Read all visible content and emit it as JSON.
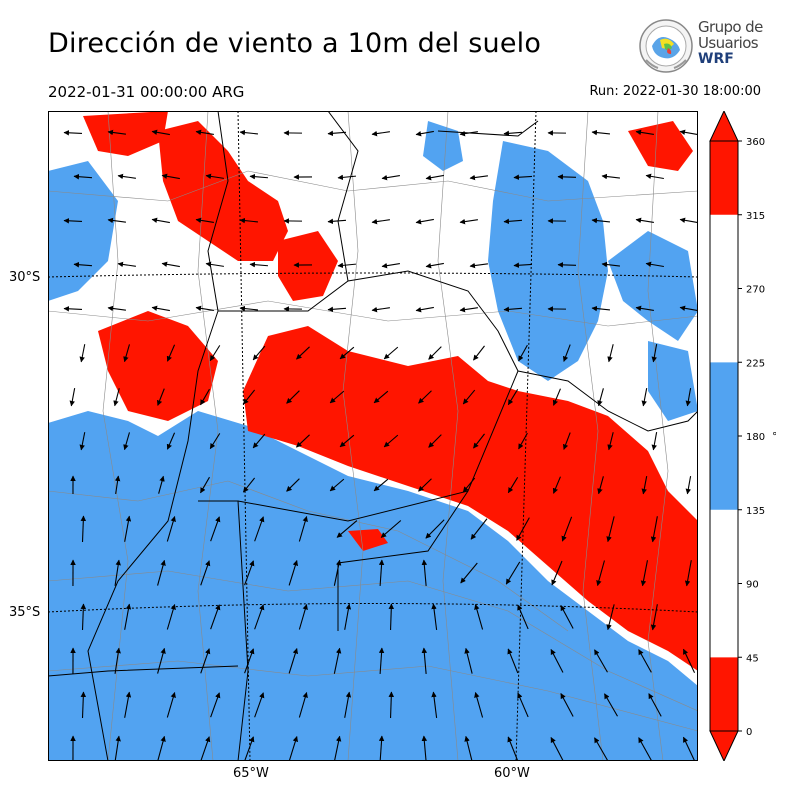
{
  "title": "Dirección de viento a 10m del suelo",
  "valid_time": "2022-01-31 00:00:00 ARG",
  "run_time": "Run: 2022-01-30 18:00:00",
  "logo": {
    "line1": "Grupo de",
    "line2": "Usuarios",
    "line3": "WRF",
    "icon": "wrf-globe-emblem"
  },
  "map": {
    "lat_labels": [
      "30°S",
      "35°S"
    ],
    "lon_labels": [
      "65°W",
      "60°W"
    ],
    "region": "Centro de Argentina",
    "colors": {
      "north_sector": "#ff1500",
      "south_sector": "#52a3f1",
      "other": "#ffffff",
      "borders": "#000000",
      "departments": "#8a8a8a"
    }
  },
  "colorbar": {
    "ticks": [
      "0",
      "45",
      "90",
      "135",
      "180",
      "225",
      "270",
      "315",
      "360"
    ],
    "unit": "°",
    "bins": [
      {
        "from": 0,
        "to": 45,
        "color": "#ff1500"
      },
      {
        "from": 45,
        "to": 135,
        "color": "#ffffff"
      },
      {
        "from": 135,
        "to": 225,
        "color": "#52a3f1"
      },
      {
        "from": 225,
        "to": 315,
        "color": "#ffffff"
      },
      {
        "from": 315,
        "to": 360,
        "color": "#ff1500"
      }
    ]
  }
}
